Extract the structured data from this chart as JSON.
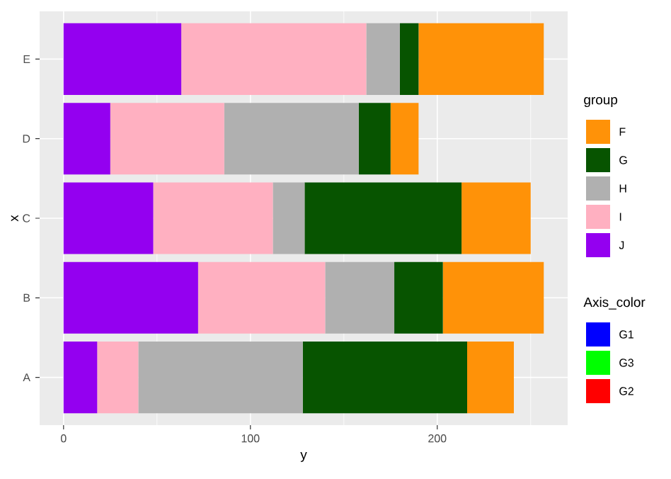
{
  "chart_data": {
    "type": "bar",
    "orientation": "horizontal",
    "stacked": true,
    "xlabel": "y",
    "ylabel": "x",
    "legend_title": "group",
    "annotations": [
      "Axis_color"
    ],
    "categories": [
      "E",
      "D",
      "C",
      "B",
      "A"
    ],
    "series": [
      {
        "name": "J",
        "color": "#9400f0",
        "values": [
          63,
          25,
          48,
          72,
          18
        ]
      },
      {
        "name": "I",
        "color": "#ffb0c1",
        "values": [
          99,
          61,
          64,
          68,
          22
        ]
      },
      {
        "name": "H",
        "color": "#b0b0b0",
        "values": [
          18,
          72,
          17,
          37,
          88
        ]
      },
      {
        "name": "G",
        "color": "#075400",
        "values": [
          10,
          17,
          84,
          26,
          88
        ]
      },
      {
        "name": "F",
        "color": "#ff9208",
        "values": [
          67,
          15,
          37,
          54,
          25
        ]
      },
      {
        "name": "G1",
        "color": "#0000ff",
        "values": [
          null,
          null,
          null,
          null,
          null
        ]
      },
      {
        "name": "G3",
        "color": "#00ff00",
        "values": [
          null,
          null,
          null,
          null,
          null
        ]
      },
      {
        "name": "G2",
        "color": "#ff0000",
        "values": [
          null,
          null,
          null,
          null,
          null
        ]
      }
    ],
    "xlim": [
      -12.8,
      269.8
    ],
    "xticks": [
      0,
      {
        "value": 50,
        "label": null
      },
      100,
      {
        "value": 150,
        "label": null
      },
      200,
      {
        "value": 250,
        "label": null
      }
    ],
    "grid": true,
    "legend": "right"
  }
}
